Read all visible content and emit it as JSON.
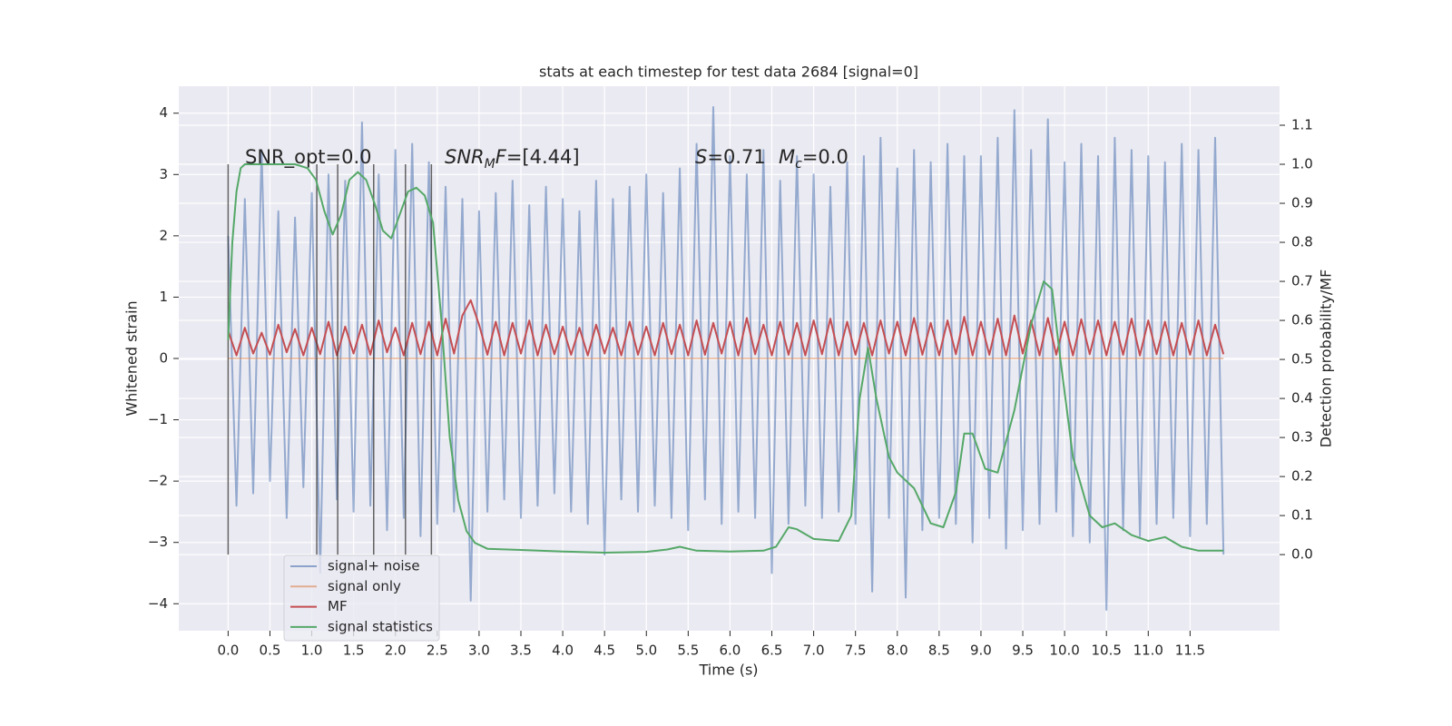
{
  "chart_data": {
    "type": "line",
    "title": "stats at each timestep for test data 2684 [signal=0]",
    "xlabel": "Time (s)",
    "ylabel": "Whitened strain",
    "y2label": "Detection probability/MF",
    "xlim": [
      -0.59,
      12.57
    ],
    "ylim": [
      -4.44,
      4.44
    ],
    "y2lim": [
      -0.195,
      1.2
    ],
    "grid": true,
    "legend": "lower left",
    "xticks": [
      {
        "value": 0,
        "label": "0.0"
      },
      {
        "value": 0.5,
        "label": "0.5"
      },
      {
        "value": 1,
        "label": "1.0"
      },
      {
        "value": 1.5,
        "label": "1.5"
      },
      {
        "value": 2,
        "label": "2.0"
      },
      {
        "value": 2.5,
        "label": "2.5"
      },
      {
        "value": 3,
        "label": "3.0"
      },
      {
        "value": 3.5,
        "label": "3.5"
      },
      {
        "value": 4,
        "label": "4.0"
      },
      {
        "value": 4.5,
        "label": "4.5"
      },
      {
        "value": 5,
        "label": "5.0"
      },
      {
        "value": 5.5,
        "label": "5.5"
      },
      {
        "value": 6,
        "label": "6.0"
      },
      {
        "value": 6.5,
        "label": "6.5"
      },
      {
        "value": 7,
        "label": "7.0"
      },
      {
        "value": 7.5,
        "label": "7.5"
      },
      {
        "value": 8,
        "label": "8.0"
      },
      {
        "value": 8.5,
        "label": "8.5"
      },
      {
        "value": 9,
        "label": "9.0"
      },
      {
        "value": 9.5,
        "label": "9.5"
      },
      {
        "value": 10,
        "label": "10.0"
      },
      {
        "value": 10.5,
        "label": "10.5"
      },
      {
        "value": 11,
        "label": "11.0"
      },
      {
        "value": 11.5,
        "label": "11.5"
      }
    ],
    "yticks": [
      {
        "value": -4,
        "label": "−4"
      },
      {
        "value": -3,
        "label": "−3"
      },
      {
        "value": -2,
        "label": "−2"
      },
      {
        "value": -1,
        "label": "−1"
      },
      0,
      1,
      2,
      3,
      4
    ],
    "y2ticks": [
      {
        "value": 0,
        "label": "0.0"
      },
      0.1,
      0.2,
      0.3,
      0.4,
      0.5,
      0.6,
      0.7,
      0.8,
      0.9,
      {
        "value": 1,
        "label": "1.0"
      },
      1.1
    ],
    "annotations": [
      {
        "parts": [
          "SNR_opt=0.0"
        ]
      },
      {
        "parts": [
          "SNR",
          "M",
          "F",
          "=[4.44]"
        ]
      },
      {
        "parts": [
          "S",
          "=0.71"
        ]
      },
      {
        "parts": [
          "M",
          "c",
          "=0.0"
        ]
      }
    ],
    "vlines": [
      0,
      1.06,
      1.31,
      1.74,
      2.12,
      2.43
    ],
    "vline_color": "#333333",
    "x": [
      0,
      0.1,
      0.2,
      0.3,
      0.4,
      0.5,
      0.6,
      0.7,
      0.8,
      0.9,
      1,
      1.1,
      1.2,
      1.3,
      1.4,
      1.5,
      1.6,
      1.7,
      1.8,
      1.9,
      2,
      2.1,
      2.2,
      2.3,
      2.4,
      2.5,
      2.6,
      2.7,
      2.8,
      2.9,
      3,
      3.1,
      3.2,
      3.3,
      3.4,
      3.5,
      3.6,
      3.7,
      3.8,
      3.9,
      4,
      4.1,
      4.2,
      4.3,
      4.4,
      4.5,
      4.6,
      4.7,
      4.8,
      4.9,
      5,
      5.1,
      5.2,
      5.3,
      5.4,
      5.5,
      5.6,
      5.7,
      5.8,
      5.9,
      6,
      6.1,
      6.2,
      6.3,
      6.4,
      6.5,
      6.6,
      6.7,
      6.8,
      6.9,
      7,
      7.1,
      7.2,
      7.3,
      7.4,
      7.5,
      7.6,
      7.7,
      7.8,
      7.9,
      8,
      8.1,
      8.2,
      8.3,
      8.4,
      8.5,
      8.6,
      8.7,
      8.8,
      8.9,
      9,
      9.1,
      9.2,
      9.3,
      9.4,
      9.5,
      9.6,
      9.7,
      9.8,
      9.9,
      10,
      10.1,
      10.2,
      10.3,
      10.4,
      10.5,
      10.6,
      10.7,
      10.8,
      10.9,
      11,
      11.1,
      11.2,
      11.3,
      11.4,
      11.5,
      11.6,
      11.7,
      11.8,
      11.9
    ],
    "series": [
      {
        "name": "signal+ noise",
        "color": "#4c72b0",
        "values": [
          2.0,
          -2.4,
          2.6,
          -2.2,
          3.4,
          -2.0,
          2.4,
          -2.6,
          2.3,
          -2.1,
          2.7,
          -3.5,
          3.0,
          -2.3,
          2.9,
          -2.5,
          3.85,
          -2.4,
          3.0,
          -2.8,
          3.4,
          -2.6,
          3.5,
          -2.9,
          3.2,
          -2.7,
          2.8,
          -2.5,
          2.6,
          -3.95,
          2.4,
          -2.5,
          2.7,
          -2.3,
          2.9,
          -2.6,
          2.5,
          -2.4,
          2.8,
          -2.2,
          2.6,
          -2.5,
          2.4,
          -2.7,
          2.9,
          -3.2,
          2.6,
          -2.3,
          2.8,
          -2.5,
          3.0,
          -2.4,
          2.7,
          -2.6,
          3.1,
          -2.8,
          3.5,
          -2.3,
          4.1,
          -2.7,
          3.3,
          -2.5,
          3.0,
          -2.6,
          3.4,
          -3.5,
          2.9,
          -2.7,
          3.3,
          -2.4,
          3.0,
          -2.6,
          2.8,
          -2.5,
          3.2,
          -2.7,
          3.3,
          -3.8,
          3.6,
          -2.6,
          3.1,
          -3.9,
          3.4,
          -2.8,
          3.2,
          -2.6,
          3.5,
          -2.7,
          3.3,
          -3.0,
          3.3,
          -2.6,
          3.6,
          -3.1,
          4.05,
          -2.8,
          3.4,
          -2.7,
          3.9,
          -2.5,
          3.2,
          -2.9,
          3.5,
          -3.0,
          3.3,
          -4.1,
          3.6,
          -2.8,
          3.4,
          -2.9,
          3.3,
          -2.7,
          3.2,
          -2.6,
          3.5,
          -2.9,
          3.4,
          -2.7,
          3.6,
          -3.2
        ]
      },
      {
        "name": "signal only",
        "color": "#dd8452",
        "values": [
          0,
          0,
          0,
          0,
          0,
          0,
          0,
          0,
          0,
          0,
          0,
          0,
          0,
          0,
          0,
          0,
          0,
          0,
          0,
          0,
          0,
          0,
          0,
          0,
          0,
          0,
          0,
          0,
          0,
          0,
          0,
          0,
          0,
          0,
          0,
          0,
          0,
          0,
          0,
          0,
          0,
          0,
          0,
          0,
          0,
          0,
          0,
          0,
          0,
          0,
          0,
          0,
          0,
          0,
          0,
          0,
          0,
          0,
          0,
          0,
          0,
          0,
          0,
          0,
          0,
          0,
          0,
          0,
          0,
          0,
          0,
          0,
          0,
          0,
          0,
          0,
          0,
          0,
          0,
          0,
          0,
          0,
          0,
          0,
          0,
          0,
          0,
          0,
          0,
          0,
          0,
          0,
          0,
          0,
          0,
          0,
          0,
          0,
          0,
          0,
          0,
          0,
          0,
          0,
          0,
          0,
          0,
          0,
          0,
          0,
          0,
          0,
          0,
          0,
          0,
          0,
          0,
          0,
          0,
          0
        ]
      },
      {
        "name": "MF",
        "color": "#c44e52",
        "values": [
          0.45,
          0.05,
          0.5,
          0.08,
          0.42,
          0.06,
          0.55,
          0.1,
          0.48,
          0.05,
          0.5,
          0.07,
          0.6,
          0.05,
          0.52,
          0.08,
          0.55,
          0.06,
          0.62,
          0.1,
          0.5,
          0.05,
          0.58,
          0.07,
          0.6,
          0.05,
          0.65,
          0.08,
          0.7,
          0.95,
          0.55,
          0.06,
          0.6,
          0.05,
          0.58,
          0.08,
          0.62,
          0.05,
          0.55,
          0.07,
          0.52,
          0.06,
          0.5,
          0.05,
          0.55,
          0.08,
          0.5,
          0.05,
          0.6,
          0.06,
          0.52,
          0.05,
          0.58,
          0.07,
          0.55,
          0.05,
          0.62,
          0.06,
          0.58,
          0.08,
          0.6,
          0.05,
          0.66,
          0.07,
          0.55,
          0.05,
          0.6,
          0.06,
          0.58,
          0.05,
          0.62,
          0.07,
          0.65,
          0.05,
          0.6,
          0.06,
          0.58,
          0.05,
          0.62,
          0.08,
          0.6,
          0.05,
          0.66,
          0.06,
          0.58,
          0.05,
          0.62,
          0.07,
          0.68,
          0.05,
          0.6,
          0.06,
          0.65,
          0.05,
          0.7,
          0.08,
          0.62,
          0.05,
          0.66,
          0.06,
          0.6,
          0.05,
          0.64,
          0.07,
          0.62,
          0.05,
          0.6,
          0.06,
          0.65,
          0.05,
          0.62,
          0.07,
          0.6,
          0.05,
          0.58,
          0.06,
          0.62,
          0.05,
          0.55,
          0.07
        ]
      },
      {
        "name": "signal statistics",
        "color": "#55a868",
        "axis": "y2",
        "x": [
          0,
          0.05,
          0.1,
          0.15,
          0.2,
          0.3,
          0.5,
          0.8,
          0.95,
          1.05,
          1.15,
          1.25,
          1.35,
          1.45,
          1.55,
          1.65,
          1.75,
          1.85,
          1.95,
          2.05,
          2.15,
          2.25,
          2.35,
          2.45,
          2.55,
          2.65,
          2.75,
          2.85,
          2.95,
          3.1,
          3.5,
          4.0,
          4.5,
          5.0,
          5.25,
          5.4,
          5.6,
          6.0,
          6.4,
          6.55,
          6.7,
          6.8,
          7.0,
          7.3,
          7.45,
          7.55,
          7.65,
          7.75,
          7.9,
          8.0,
          8.2,
          8.4,
          8.55,
          8.7,
          8.8,
          8.9,
          9.05,
          9.2,
          9.4,
          9.6,
          9.75,
          9.85,
          9.95,
          10.1,
          10.3,
          10.45,
          10.6,
          10.8,
          11.0,
          11.2,
          11.4,
          11.6,
          11.9
        ],
        "values": [
          0.55,
          0.8,
          0.93,
          0.99,
          1.0,
          1.0,
          1.0,
          1.0,
          0.99,
          0.96,
          0.88,
          0.82,
          0.87,
          0.96,
          0.98,
          0.96,
          0.9,
          0.83,
          0.81,
          0.87,
          0.93,
          0.94,
          0.92,
          0.85,
          0.6,
          0.3,
          0.14,
          0.06,
          0.03,
          0.015,
          0.012,
          0.008,
          0.005,
          0.007,
          0.013,
          0.02,
          0.01,
          0.008,
          0.01,
          0.02,
          0.07,
          0.065,
          0.04,
          0.035,
          0.1,
          0.4,
          0.53,
          0.4,
          0.25,
          0.21,
          0.17,
          0.08,
          0.07,
          0.16,
          0.31,
          0.31,
          0.22,
          0.21,
          0.37,
          0.59,
          0.7,
          0.68,
          0.5,
          0.25,
          0.1,
          0.07,
          0.08,
          0.05,
          0.035,
          0.045,
          0.02,
          0.01,
          0.01
        ]
      }
    ]
  }
}
